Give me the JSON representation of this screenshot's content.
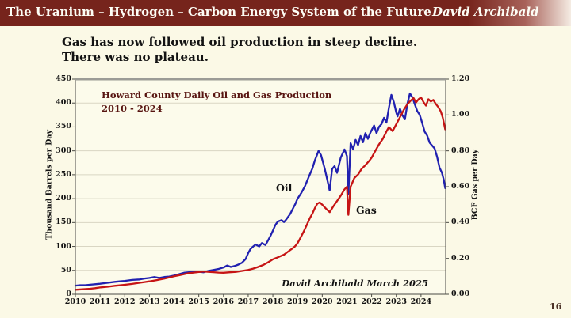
{
  "header": {
    "title": "The Uranium – Hydrogen – Carbon Energy System of the Future",
    "author": "David Archibald",
    "bg_color": "#76241c"
  },
  "subtitle": {
    "line1": "Gas has now followed oil production in steep decline.",
    "line2": "There was no plateau."
  },
  "page_number": "16",
  "colors": {
    "slide_background": "#fbf9e6",
    "oil_line": "#2121b0",
    "gas_line": "#c61414",
    "chart_title": "#571410"
  },
  "chart_data": {
    "type": "line",
    "title_line1": "Howard County Daily Oil and Gas Production",
    "title_line2": "2010 - 2024",
    "annotation": "David Archibald March 2025",
    "grid": true,
    "legend": "inline-labels",
    "left_axis": {
      "label": "Thousand Barrels per Day",
      "min": 0,
      "max": 450,
      "ticks": [
        0,
        50,
        100,
        150,
        200,
        250,
        300,
        350,
        400,
        450
      ]
    },
    "right_axis": {
      "label": "BCF Gas per Day",
      "min": 0,
      "max": 1.2,
      "ticks": [
        "0.00",
        "0.20",
        "0.40",
        "0.60",
        "0.80",
        "1.00",
        "1.20"
      ]
    },
    "x_axis": {
      "min": 2010,
      "max": 2025,
      "ticks": [
        2010,
        2011,
        2012,
        2013,
        2014,
        2015,
        2016,
        2017,
        2018,
        2019,
        2020,
        2021,
        2022,
        2023,
        2024
      ]
    },
    "series": [
      {
        "name": "Oil",
        "axis": "left",
        "color": "#2121b0",
        "points": [
          [
            2010.0,
            18
          ],
          [
            2010.2,
            19
          ],
          [
            2010.4,
            19
          ],
          [
            2010.6,
            20
          ],
          [
            2010.8,
            21
          ],
          [
            2011.0,
            22
          ],
          [
            2011.3,
            24
          ],
          [
            2011.6,
            26
          ],
          [
            2011.8,
            27
          ],
          [
            2012.0,
            28
          ],
          [
            2012.3,
            30
          ],
          [
            2012.6,
            31
          ],
          [
            2012.8,
            33
          ],
          [
            2013.0,
            34
          ],
          [
            2013.2,
            36
          ],
          [
            2013.4,
            34
          ],
          [
            2013.6,
            36
          ],
          [
            2013.8,
            37
          ],
          [
            2014.0,
            39
          ],
          [
            2014.2,
            42
          ],
          [
            2014.4,
            45
          ],
          [
            2014.6,
            46
          ],
          [
            2014.8,
            46
          ],
          [
            2015.0,
            47
          ],
          [
            2015.2,
            46
          ],
          [
            2015.4,
            49
          ],
          [
            2015.6,
            51
          ],
          [
            2015.8,
            53
          ],
          [
            2016.0,
            56
          ],
          [
            2016.15,
            60
          ],
          [
            2016.3,
            57
          ],
          [
            2016.45,
            59
          ],
          [
            2016.6,
            62
          ],
          [
            2016.75,
            66
          ],
          [
            2016.9,
            74
          ],
          [
            2017.0,
            86
          ],
          [
            2017.1,
            95
          ],
          [
            2017.2,
            100
          ],
          [
            2017.3,
            104
          ],
          [
            2017.45,
            100
          ],
          [
            2017.55,
            107
          ],
          [
            2017.7,
            103
          ],
          [
            2017.8,
            112
          ],
          [
            2017.9,
            122
          ],
          [
            2018.0,
            133
          ],
          [
            2018.1,
            145
          ],
          [
            2018.2,
            152
          ],
          [
            2018.35,
            155
          ],
          [
            2018.45,
            151
          ],
          [
            2018.55,
            157
          ],
          [
            2018.7,
            168
          ],
          [
            2018.8,
            178
          ],
          [
            2018.9,
            188
          ],
          [
            2019.0,
            200
          ],
          [
            2019.15,
            212
          ],
          [
            2019.3,
            226
          ],
          [
            2019.45,
            245
          ],
          [
            2019.6,
            263
          ],
          [
            2019.7,
            280
          ],
          [
            2019.85,
            300
          ],
          [
            2019.95,
            291
          ],
          [
            2020.1,
            263
          ],
          [
            2020.2,
            240
          ],
          [
            2020.3,
            217
          ],
          [
            2020.4,
            262
          ],
          [
            2020.5,
            268
          ],
          [
            2020.6,
            254
          ],
          [
            2020.75,
            286
          ],
          [
            2020.9,
            303
          ],
          [
            2021.0,
            289
          ],
          [
            2021.06,
            210
          ],
          [
            2021.15,
            316
          ],
          [
            2021.25,
            303
          ],
          [
            2021.35,
            323
          ],
          [
            2021.45,
            312
          ],
          [
            2021.55,
            331
          ],
          [
            2021.65,
            318
          ],
          [
            2021.75,
            337
          ],
          [
            2021.85,
            325
          ],
          [
            2021.95,
            338
          ],
          [
            2022.1,
            353
          ],
          [
            2022.2,
            337
          ],
          [
            2022.3,
            350
          ],
          [
            2022.4,
            356
          ],
          [
            2022.5,
            369
          ],
          [
            2022.6,
            359
          ],
          [
            2022.7,
            390
          ],
          [
            2022.8,
            417
          ],
          [
            2022.9,
            402
          ],
          [
            2023.0,
            380
          ],
          [
            2023.05,
            372
          ],
          [
            2023.15,
            388
          ],
          [
            2023.25,
            374
          ],
          [
            2023.35,
            366
          ],
          [
            2023.45,
            398
          ],
          [
            2023.55,
            420
          ],
          [
            2023.65,
            412
          ],
          [
            2023.75,
            397
          ],
          [
            2023.85,
            383
          ],
          [
            2023.95,
            375
          ],
          [
            2024.05,
            358
          ],
          [
            2024.15,
            340
          ],
          [
            2024.25,
            332
          ],
          [
            2024.35,
            317
          ],
          [
            2024.45,
            311
          ],
          [
            2024.55,
            305
          ],
          [
            2024.65,
            288
          ],
          [
            2024.75,
            265
          ],
          [
            2024.85,
            254
          ],
          [
            2024.92,
            240
          ],
          [
            2024.98,
            222
          ]
        ]
      },
      {
        "name": "Gas",
        "axis": "right",
        "color": "#c61414",
        "points": [
          [
            2010.0,
            0.025
          ],
          [
            2010.3,
            0.028
          ],
          [
            2010.6,
            0.031
          ],
          [
            2010.8,
            0.034
          ],
          [
            2011.0,
            0.038
          ],
          [
            2011.3,
            0.042
          ],
          [
            2011.6,
            0.047
          ],
          [
            2011.8,
            0.05
          ],
          [
            2012.0,
            0.053
          ],
          [
            2012.3,
            0.058
          ],
          [
            2012.6,
            0.064
          ],
          [
            2012.8,
            0.068
          ],
          [
            2013.0,
            0.072
          ],
          [
            2013.3,
            0.079
          ],
          [
            2013.6,
            0.087
          ],
          [
            2013.8,
            0.094
          ],
          [
            2014.0,
            0.1
          ],
          [
            2014.2,
            0.106
          ],
          [
            2014.4,
            0.112
          ],
          [
            2014.6,
            0.118
          ],
          [
            2014.8,
            0.121
          ],
          [
            2015.0,
            0.124
          ],
          [
            2015.2,
            0.127
          ],
          [
            2015.4,
            0.125
          ],
          [
            2015.6,
            0.123
          ],
          [
            2015.8,
            0.121
          ],
          [
            2016.0,
            0.12
          ],
          [
            2016.2,
            0.122
          ],
          [
            2016.5,
            0.125
          ],
          [
            2016.8,
            0.131
          ],
          [
            2017.0,
            0.136
          ],
          [
            2017.2,
            0.143
          ],
          [
            2017.4,
            0.152
          ],
          [
            2017.6,
            0.163
          ],
          [
            2017.8,
            0.178
          ],
          [
            2017.9,
            0.186
          ],
          [
            2018.0,
            0.195
          ],
          [
            2018.15,
            0.203
          ],
          [
            2018.3,
            0.212
          ],
          [
            2018.45,
            0.221
          ],
          [
            2018.6,
            0.236
          ],
          [
            2018.75,
            0.251
          ],
          [
            2018.9,
            0.268
          ],
          [
            2019.0,
            0.285
          ],
          [
            2019.1,
            0.31
          ],
          [
            2019.25,
            0.35
          ],
          [
            2019.4,
            0.395
          ],
          [
            2019.5,
            0.425
          ],
          [
            2019.6,
            0.45
          ],
          [
            2019.7,
            0.48
          ],
          [
            2019.8,
            0.505
          ],
          [
            2019.9,
            0.512
          ],
          [
            2020.0,
            0.5
          ],
          [
            2020.15,
            0.478
          ],
          [
            2020.3,
            0.458
          ],
          [
            2020.45,
            0.49
          ],
          [
            2020.6,
            0.52
          ],
          [
            2020.75,
            0.55
          ],
          [
            2020.9,
            0.585
          ],
          [
            2021.0,
            0.6
          ],
          [
            2021.06,
            0.443
          ],
          [
            2021.15,
            0.6
          ],
          [
            2021.3,
            0.648
          ],
          [
            2021.45,
            0.668
          ],
          [
            2021.6,
            0.7
          ],
          [
            2021.75,
            0.72
          ],
          [
            2021.9,
            0.744
          ],
          [
            2022.0,
            0.762
          ],
          [
            2022.15,
            0.8
          ],
          [
            2022.3,
            0.836
          ],
          [
            2022.45,
            0.866
          ],
          [
            2022.6,
            0.908
          ],
          [
            2022.7,
            0.932
          ],
          [
            2022.85,
            0.91
          ],
          [
            2023.0,
            0.948
          ],
          [
            2023.15,
            0.988
          ],
          [
            2023.3,
            1.028
          ],
          [
            2023.45,
            1.06
          ],
          [
            2023.6,
            1.082
          ],
          [
            2023.7,
            1.094
          ],
          [
            2023.8,
            1.07
          ],
          [
            2023.9,
            1.088
          ],
          [
            2024.0,
            1.098
          ],
          [
            2024.1,
            1.072
          ],
          [
            2024.2,
            1.052
          ],
          [
            2024.3,
            1.088
          ],
          [
            2024.4,
            1.075
          ],
          [
            2024.5,
            1.084
          ],
          [
            2024.6,
            1.062
          ],
          [
            2024.7,
            1.044
          ],
          [
            2024.8,
            1.02
          ],
          [
            2024.88,
            0.985
          ],
          [
            2024.98,
            0.92
          ]
        ]
      }
    ]
  }
}
